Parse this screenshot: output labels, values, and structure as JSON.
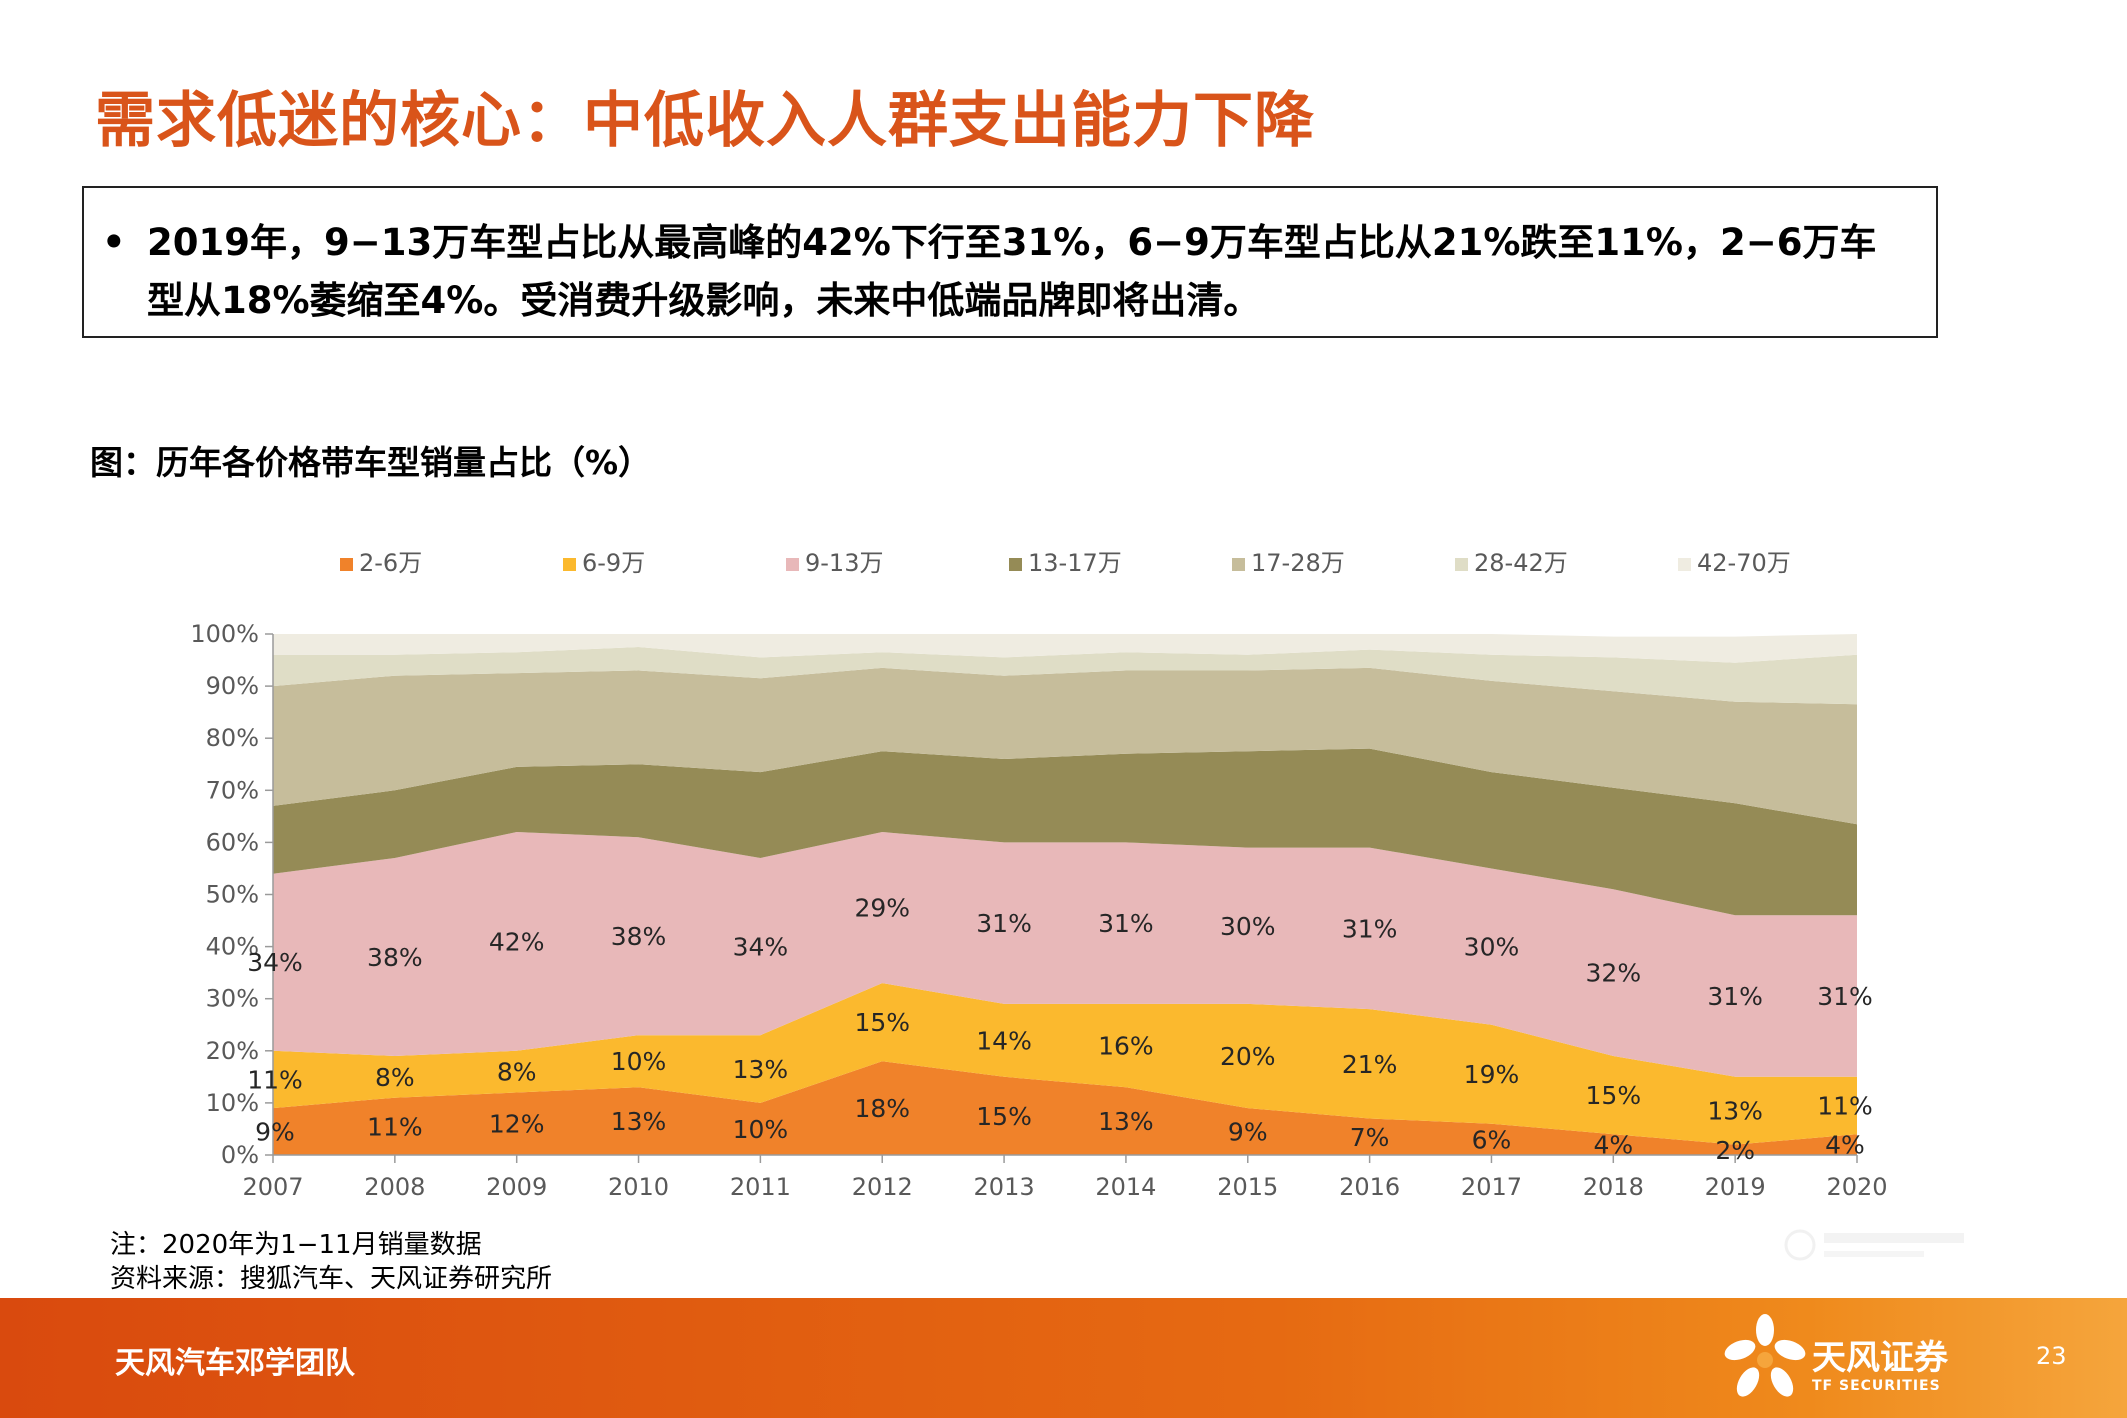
{
  "title": "需求低迷的核心：中低收入人群支出能力下降",
  "bullet": {
    "symbol": "•",
    "text": "2019年，9−13万车型占比从最高峰的42%下行至31%，6−9万车型占比从21%跌至11%，2−6万车型从18%萎缩至4%。受消费升级影响，未来中低端品牌即将出清。"
  },
  "chart_caption": "图：历年各价格带车型销量占比（%）",
  "chart_data": {
    "type": "area",
    "stacked": true,
    "categories": [
      "2007",
      "2008",
      "2009",
      "2010",
      "2011",
      "2012",
      "2013",
      "2014",
      "2015",
      "2016",
      "2017",
      "2018",
      "2019",
      "2020"
    ],
    "yticks": [
      "0%",
      "10%",
      "20%",
      "30%",
      "40%",
      "50%",
      "60%",
      "70%",
      "80%",
      "90%",
      "100%"
    ],
    "ylim": [
      0,
      100
    ],
    "legend_position": "top",
    "series": [
      {
        "name": "2-6万",
        "color": "#f0822a",
        "values": [
          9,
          11,
          12,
          13,
          10,
          18,
          15,
          13,
          9,
          7,
          6,
          4,
          2,
          4
        ],
        "labels": [
          "9%",
          "11%",
          "12%",
          "13%",
          "10%",
          "18%",
          "15%",
          "13%",
          "9%",
          "7%",
          "6%",
          "4%",
          "2%",
          "4%"
        ]
      },
      {
        "name": "6-9万",
        "color": "#fbb92e",
        "values": [
          11,
          8,
          8,
          10,
          13,
          15,
          14,
          16,
          20,
          21,
          19,
          15,
          13,
          11
        ],
        "labels": [
          "11%",
          "8%",
          "8%",
          "10%",
          "13%",
          "15%",
          "14%",
          "16%",
          "20%",
          "21%",
          "19%",
          "15%",
          "13%",
          "11%"
        ]
      },
      {
        "name": "9-13万",
        "color": "#e8b8b9",
        "values": [
          34,
          38,
          42,
          38,
          34,
          29,
          31,
          31,
          30,
          31,
          30,
          32,
          31,
          31
        ],
        "labels": [
          "34%",
          "38%",
          "42%",
          "38%",
          "34%",
          "29%",
          "31%",
          "31%",
          "30%",
          "31%",
          "30%",
          "32%",
          "31%",
          "31%"
        ]
      },
      {
        "name": "13-17万",
        "color": "#958b56",
        "values": [
          13,
          13,
          12.5,
          14,
          16.5,
          15.5,
          16,
          17,
          18.5,
          19,
          18.5,
          19.5,
          21.5,
          17.5
        ]
      },
      {
        "name": "17-28万",
        "color": "#c6bd9b",
        "values": [
          23,
          22,
          18,
          18,
          18,
          16,
          16,
          16,
          15.5,
          15.5,
          17.5,
          18.5,
          19.5,
          23
        ]
      },
      {
        "name": "28-42万",
        "color": "#dfddc6",
        "values": [
          6,
          4,
          4,
          4.5,
          4,
          3,
          3.5,
          3.5,
          3,
          3.5,
          5,
          6.5,
          7.5,
          9.5
        ]
      },
      {
        "name": "42-70万",
        "color": "#efece1",
        "values": [
          4,
          4,
          3.5,
          2.5,
          4.5,
          3.5,
          4.5,
          3.5,
          4,
          3,
          4,
          4,
          5,
          4
        ]
      }
    ]
  },
  "notes": {
    "line1": "注：2020年为1−11月销量数据",
    "line2": "资料来源：搜狐汽车、天风证券研究所"
  },
  "footer": {
    "team": "天风汽车邓学团队",
    "brand": "天风证券",
    "brand_en": "TF SECURITIES",
    "page": "23"
  }
}
